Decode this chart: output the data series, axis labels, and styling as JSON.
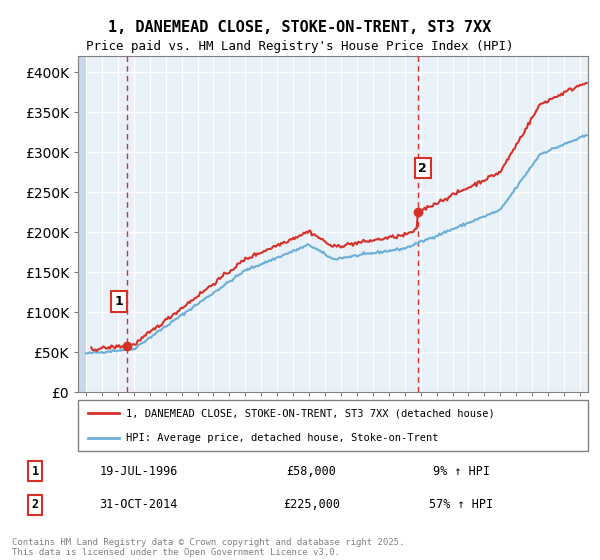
{
  "title": "1, DANEMEAD CLOSE, STOKE-ON-TRENT, ST3 7XX",
  "subtitle": "Price paid vs. HM Land Registry's House Price Index (HPI)",
  "ylim": [
    0,
    420000
  ],
  "yticks": [
    0,
    50000,
    100000,
    150000,
    200000,
    250000,
    300000,
    350000,
    400000
  ],
  "xlim_year": [
    1993.5,
    2025.5
  ],
  "sale1_year": 1996.55,
  "sale1_price": 58000,
  "sale1_label": "1",
  "sale2_year": 2014.83,
  "sale2_price": 225000,
  "sale2_label": "2",
  "legend_line1": "1, DANEMEAD CLOSE, STOKE-ON-TRENT, ST3 7XX (detached house)",
  "legend_line2": "HPI: Average price, detached house, Stoke-on-Trent",
  "table_row1": [
    "1",
    "19-JUL-1996",
    "£58,000",
    "9% ↑ HPI"
  ],
  "table_row2": [
    "2",
    "31-OCT-2014",
    "£225,000",
    "57% ↑ HPI"
  ],
  "footer": "Contains HM Land Registry data © Crown copyright and database right 2025.\nThis data is licensed under the Open Government Licence v3.0.",
  "hpi_color": "#6baed6",
  "price_color": "#d73027",
  "background_color": "#e8f0f8",
  "hatch_color": "#c8d8e8"
}
